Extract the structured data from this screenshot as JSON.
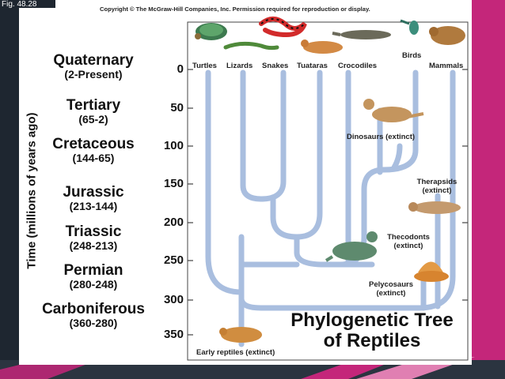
{
  "figure_label": "Fig. 48.28",
  "copyright": "Copyright © The McGraw-Hill Companies, Inc. Permission required for reproduction or display.",
  "axis": {
    "title": "Time (millions of years ago)",
    "ticks": [
      "0",
      "50",
      "100",
      "150",
      "200",
      "250",
      "300",
      "350"
    ]
  },
  "eras": [
    {
      "name": "Quaternary",
      "range": "(2-Present)"
    },
    {
      "name": "Tertiary",
      "range": "(65-2)"
    },
    {
      "name": "Cretaceous",
      "range": "(144-65)"
    },
    {
      "name": "Jurassic",
      "range": "(213-144)"
    },
    {
      "name": "Triassic",
      "range": "(248-213)"
    },
    {
      "name": "Permian",
      "range": "(280-248)"
    },
    {
      "name": "Carboniferous",
      "range": "(360-280)"
    }
  ],
  "clades": {
    "turtles": "Turtles",
    "lizards": "Lizards",
    "snakes": "Snakes",
    "tuataras": "Tuataras",
    "crocodiles": "Crocodiles",
    "birds": "Birds",
    "mammals": "Mammals",
    "dinosaurs": "Dinosaurs (extinct)",
    "therapsids_1": "Therapsids",
    "therapsids_2": "(extinct)",
    "thecodonts_1": "Thecodonts",
    "thecodonts_2": "(extinct)",
    "pelycosaurs_1": "Pelycosaurs",
    "pelycosaurs_2": "(extinct)",
    "early_reptiles": "Early reptiles (extinct)"
  },
  "title": {
    "line1": "Phylogenetic Tree",
    "line2": "of Reptiles"
  },
  "colors": {
    "branch": "#a9bedf",
    "frame": "#444444",
    "slide_accent": "#c4267a",
    "slide_dark": "#1e2630"
  }
}
